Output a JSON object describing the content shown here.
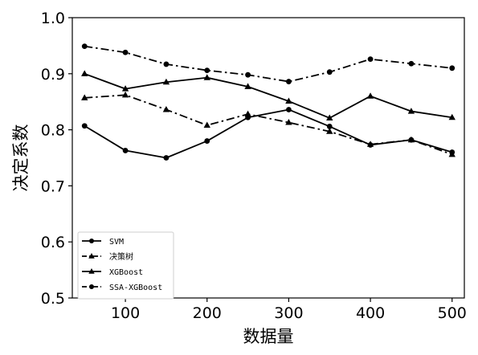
{
  "chart_data": {
    "type": "line",
    "xlabel": "数据量",
    "ylabel": "决定系数",
    "xlim": [
      35,
      515
    ],
    "ylim": [
      0.5,
      1.0
    ],
    "xticks": [
      "100",
      "200",
      "300",
      "400",
      "500"
    ],
    "yticks": [
      "0.5",
      "0.6",
      "0.7",
      "0.8",
      "0.9",
      "1.0"
    ],
    "x": [
      50,
      100,
      150,
      200,
      250,
      300,
      350,
      400,
      450,
      500
    ],
    "grid": false,
    "legend_position": "lower-left",
    "series": [
      {
        "name": "SVM",
        "linestyle": "solid",
        "marker": "circle",
        "values": [
          0.807,
          0.763,
          0.75,
          0.78,
          0.822,
          0.836,
          0.806,
          0.773,
          0.782,
          0.76
        ]
      },
      {
        "name": "决策树",
        "linestyle": "dashdot",
        "marker": "triangle",
        "values": [
          0.857,
          0.862,
          0.836,
          0.808,
          0.828,
          0.813,
          0.797,
          0.774,
          0.782,
          0.756
        ]
      },
      {
        "name": "XGBoost",
        "linestyle": "solid",
        "marker": "triangle",
        "values": [
          0.9,
          0.873,
          0.885,
          0.893,
          0.877,
          0.851,
          0.821,
          0.86,
          0.833,
          0.822
        ]
      },
      {
        "name": "SSA-XGBoost",
        "linestyle": "dashdot",
        "marker": "circle",
        "values": [
          0.949,
          0.938,
          0.917,
          0.906,
          0.898,
          0.886,
          0.903,
          0.926,
          0.918,
          0.91
        ]
      }
    ],
    "color": "#000000"
  }
}
